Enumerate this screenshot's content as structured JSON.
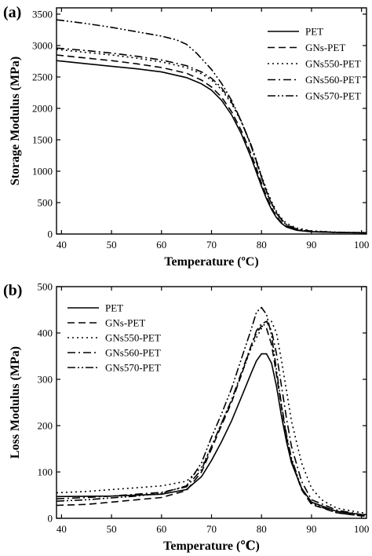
{
  "chart_data": [
    {
      "type": "line",
      "panel_label": "(a)",
      "title": "",
      "xlabel": "Temperature (ºC)",
      "ylabel": "Storage Modulus (MPa)",
      "xlim": [
        39,
        101
      ],
      "ylim": [
        0,
        3600
      ],
      "xticks": [
        40,
        50,
        60,
        70,
        80,
        90,
        100
      ],
      "yticks": [
        0,
        500,
        1000,
        1500,
        2000,
        2500,
        3000,
        3500
      ],
      "grid": false,
      "legend_position": "top-right",
      "series": [
        {
          "name": "PET",
          "dash": "none",
          "points": [
            [
              39,
              2760
            ],
            [
              45,
              2710
            ],
            [
              50,
              2670
            ],
            [
              55,
              2630
            ],
            [
              60,
              2580
            ],
            [
              65,
              2490
            ],
            [
              68,
              2390
            ],
            [
              70,
              2290
            ],
            [
              72,
              2130
            ],
            [
              74,
              1900
            ],
            [
              76,
              1590
            ],
            [
              78,
              1200
            ],
            [
              79,
              980
            ],
            [
              80,
              760
            ],
            [
              81,
              560
            ],
            [
              82,
              390
            ],
            [
              83,
              260
            ],
            [
              84,
              170
            ],
            [
              85,
              110
            ],
            [
              87,
              60
            ],
            [
              90,
              35
            ],
            [
              95,
              25
            ],
            [
              100,
              20
            ],
            [
              101,
              20
            ]
          ]
        },
        {
          "name": "GNs-PET",
          "dash": "9,5",
          "points": [
            [
              39,
              2850
            ],
            [
              45,
              2800
            ],
            [
              50,
              2760
            ],
            [
              55,
              2710
            ],
            [
              60,
              2650
            ],
            [
              65,
              2560
            ],
            [
              68,
              2450
            ],
            [
              70,
              2340
            ],
            [
              72,
              2180
            ],
            [
              74,
              1950
            ],
            [
              76,
              1640
            ],
            [
              78,
              1260
            ],
            [
              79,
              1040
            ],
            [
              80,
              810
            ],
            [
              81,
              600
            ],
            [
              82,
              420
            ],
            [
              83,
              280
            ],
            [
              84,
              185
            ],
            [
              85,
              120
            ],
            [
              87,
              65
            ],
            [
              90,
              38
            ],
            [
              95,
              25
            ],
            [
              100,
              20
            ],
            [
              101,
              20
            ]
          ]
        },
        {
          "name": "GNs550-PET",
          "dash": "2,4",
          "points": [
            [
              39,
              2940
            ],
            [
              45,
              2890
            ],
            [
              50,
              2850
            ],
            [
              55,
              2800
            ],
            [
              60,
              2740
            ],
            [
              65,
              2650
            ],
            [
              68,
              2550
            ],
            [
              70,
              2450
            ],
            [
              72,
              2300
            ],
            [
              74,
              2080
            ],
            [
              76,
              1780
            ],
            [
              78,
              1400
            ],
            [
              79,
              1170
            ],
            [
              80,
              930
            ],
            [
              81,
              710
            ],
            [
              82,
              520
            ],
            [
              83,
              360
            ],
            [
              84,
              250
            ],
            [
              85,
              170
            ],
            [
              87,
              95
            ],
            [
              90,
              50
            ],
            [
              95,
              30
            ],
            [
              100,
              22
            ],
            [
              101,
              22
            ]
          ]
        },
        {
          "name": "GNs560-PET",
          "dash": "10,4,2,4",
          "points": [
            [
              39,
              2960
            ],
            [
              45,
              2920
            ],
            [
              50,
              2880
            ],
            [
              55,
              2830
            ],
            [
              60,
              2770
            ],
            [
              65,
              2680
            ],
            [
              68,
              2580
            ],
            [
              70,
              2480
            ],
            [
              72,
              2330
            ],
            [
              74,
              2100
            ],
            [
              76,
              1790
            ],
            [
              78,
              1400
            ],
            [
              79,
              1160
            ],
            [
              80,
              910
            ],
            [
              81,
              680
            ],
            [
              82,
              490
            ],
            [
              83,
              340
            ],
            [
              84,
              230
            ],
            [
              85,
              150
            ],
            [
              87,
              80
            ],
            [
              90,
              45
            ],
            [
              95,
              28
            ],
            [
              100,
              22
            ],
            [
              101,
              22
            ]
          ]
        },
        {
          "name": "GNs570-PET",
          "dash": "10,3,2,3,2,3",
          "points": [
            [
              39,
              3410
            ],
            [
              45,
              3350
            ],
            [
              50,
              3290
            ],
            [
              55,
              3220
            ],
            [
              60,
              3150
            ],
            [
              63,
              3090
            ],
            [
              65,
              3020
            ],
            [
              67,
              2880
            ],
            [
              70,
              2620
            ],
            [
              72,
              2400
            ],
            [
              74,
              2130
            ],
            [
              76,
              1790
            ],
            [
              78,
              1380
            ],
            [
              79,
              1140
            ],
            [
              80,
              900
            ],
            [
              81,
              670
            ],
            [
              82,
              480
            ],
            [
              83,
              330
            ],
            [
              84,
              220
            ],
            [
              85,
              140
            ],
            [
              87,
              70
            ],
            [
              90,
              40
            ],
            [
              95,
              25
            ],
            [
              100,
              20
            ],
            [
              101,
              20
            ]
          ]
        }
      ]
    },
    {
      "type": "line",
      "panel_label": "(b)",
      "title": "",
      "xlabel": "Temperature (℃)",
      "ylabel": "Loss Modulus (MPa)",
      "xlim": [
        39,
        101
      ],
      "ylim": [
        0,
        500
      ],
      "xticks": [
        40,
        50,
        60,
        70,
        80,
        90,
        100
      ],
      "yticks": [
        0,
        100,
        200,
        300,
        400,
        500
      ],
      "grid": false,
      "legend_position": "top-left",
      "series": [
        {
          "name": "PET",
          "dash": "none",
          "points": [
            [
              39,
              47
            ],
            [
              50,
              48
            ],
            [
              60,
              52
            ],
            [
              65,
              62
            ],
            [
              68,
              90
            ],
            [
              70,
              125
            ],
            [
              72,
              165
            ],
            [
              74,
              210
            ],
            [
              76,
              262
            ],
            [
              78,
              315
            ],
            [
              79,
              340
            ],
            [
              80,
              355
            ],
            [
              81,
              355
            ],
            [
              82,
              335
            ],
            [
              83,
              285
            ],
            [
              84,
              220
            ],
            [
              85,
              165
            ],
            [
              86,
              120
            ],
            [
              88,
              65
            ],
            [
              90,
              35
            ],
            [
              95,
              15
            ],
            [
              100,
              8
            ],
            [
              101,
              8
            ]
          ]
        },
        {
          "name": "GNs-PET",
          "dash": "9,5",
          "points": [
            [
              39,
              28
            ],
            [
              45,
              30
            ],
            [
              50,
              35
            ],
            [
              55,
              40
            ],
            [
              60,
              45
            ],
            [
              65,
              60
            ],
            [
              68,
              100
            ],
            [
              70,
              150
            ],
            [
              72,
              200
            ],
            [
              74,
              250
            ],
            [
              76,
              310
            ],
            [
              78,
              375
            ],
            [
              79,
              400
            ],
            [
              80,
              415
            ],
            [
              81,
              410
            ],
            [
              82,
              375
            ],
            [
              83,
              310
            ],
            [
              84,
              240
            ],
            [
              85,
              175
            ],
            [
              86,
              125
            ],
            [
              88,
              62
            ],
            [
              90,
              30
            ],
            [
              95,
              12
            ],
            [
              100,
              5
            ],
            [
              101,
              5
            ]
          ]
        },
        {
          "name": "GNs550-PET",
          "dash": "2,4",
          "points": [
            [
              39,
              55
            ],
            [
              45,
              58
            ],
            [
              50,
              62
            ],
            [
              55,
              66
            ],
            [
              60,
              70
            ],
            [
              65,
              80
            ],
            [
              68,
              110
            ],
            [
              70,
              155
            ],
            [
              72,
              205
            ],
            [
              74,
              255
            ],
            [
              76,
              310
            ],
            [
              78,
              370
            ],
            [
              80,
              410
            ],
            [
              81,
              425
            ],
            [
              82,
              425
            ],
            [
              83,
              400
            ],
            [
              84,
              340
            ],
            [
              85,
              275
            ],
            [
              86,
              210
            ],
            [
              88,
              120
            ],
            [
              90,
              65
            ],
            [
              92,
              40
            ],
            [
              95,
              22
            ],
            [
              100,
              12
            ],
            [
              101,
              12
            ]
          ]
        },
        {
          "name": "GNs560-PET",
          "dash": "10,4,2,4",
          "points": [
            [
              39,
              42
            ],
            [
              45,
              45
            ],
            [
              50,
              48
            ],
            [
              55,
              52
            ],
            [
              60,
              56
            ],
            [
              65,
              68
            ],
            [
              68,
              105
            ],
            [
              70,
              155
            ],
            [
              72,
              205
            ],
            [
              74,
              255
            ],
            [
              76,
              315
            ],
            [
              78,
              375
            ],
            [
              79,
              405
            ],
            [
              80,
              420
            ],
            [
              81,
              425
            ],
            [
              82,
              405
            ],
            [
              83,
              355
            ],
            [
              84,
              285
            ],
            [
              85,
              215
            ],
            [
              86,
              155
            ],
            [
              88,
              80
            ],
            [
              90,
              40
            ],
            [
              95,
              18
            ],
            [
              100,
              8
            ],
            [
              101,
              8
            ]
          ]
        },
        {
          "name": "GNs570-PET",
          "dash": "10,3,2,3,2,3",
          "points": [
            [
              39,
              37
            ],
            [
              45,
              40
            ],
            [
              50,
              44
            ],
            [
              55,
              48
            ],
            [
              60,
              54
            ],
            [
              65,
              70
            ],
            [
              68,
              120
            ],
            [
              70,
              175
            ],
            [
              72,
              225
            ],
            [
              74,
              280
            ],
            [
              76,
              345
            ],
            [
              78,
              410
            ],
            [
              79,
              445
            ],
            [
              80,
              455
            ],
            [
              81,
              440
            ],
            [
              82,
              395
            ],
            [
              83,
              320
            ],
            [
              84,
              245
            ],
            [
              85,
              180
            ],
            [
              86,
              130
            ],
            [
              88,
              65
            ],
            [
              90,
              32
            ],
            [
              95,
              12
            ],
            [
              100,
              5
            ],
            [
              101,
              5
            ]
          ]
        }
      ]
    }
  ]
}
